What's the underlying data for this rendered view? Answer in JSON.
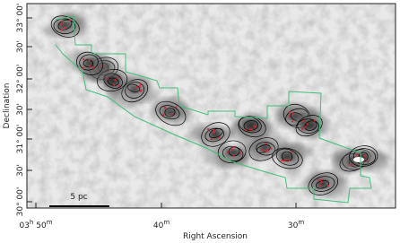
{
  "figure": {
    "x_label": "Right Ascension",
    "y_label": "Declination",
    "x_ticks": [
      [
        "03",
        "h",
        " 50",
        "m"
      ],
      [
        "40",
        "m"
      ],
      [
        "30",
        "m"
      ]
    ],
    "y_ticks": [
      "33° 00'",
      "30'",
      "32° 00'",
      "30'",
      "31° 00'",
      "30'",
      "30° 00'"
    ],
    "scale_bar": "5 pc"
  }
}
